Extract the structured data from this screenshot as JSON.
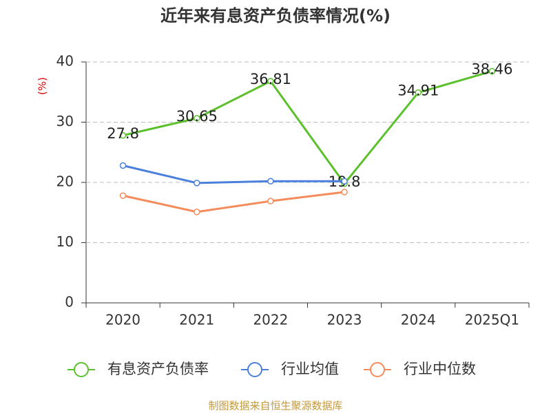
{
  "chart_data": {
    "type": "line",
    "title": "近年来有息资产负债率情况(%)",
    "y_label": "(%)",
    "categories": [
      "2020",
      "2021",
      "2022",
      "2023",
      "2024",
      "2025Q1"
    ],
    "series": [
      {
        "name": "有息资产负债率",
        "color": "#5ac12c",
        "values": [
          27.8,
          30.65,
          36.81,
          19.8,
          34.91,
          38.46
        ]
      },
      {
        "name": "行业均值",
        "color": "#4a80dc",
        "values": [
          22.8,
          19.9,
          20.2,
          20.2,
          null,
          null
        ]
      },
      {
        "name": "行业中位数",
        "color": "#f58b5b",
        "values": [
          17.8,
          15.1,
          16.9,
          18.4,
          null,
          null
        ]
      }
    ],
    "ylim": [
      0,
      40
    ],
    "yticks": [
      0,
      10,
      20,
      30,
      40
    ],
    "grid": true,
    "source": "制图数据来自恒生聚源数据库"
  }
}
